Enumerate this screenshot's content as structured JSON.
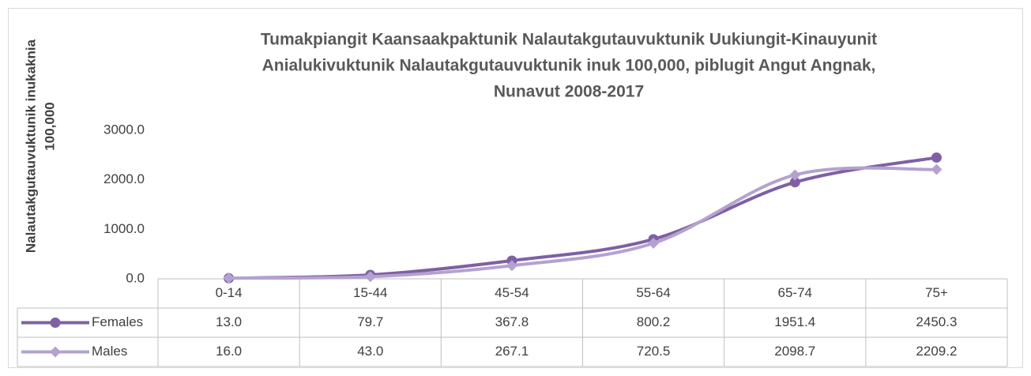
{
  "chart_data": {
    "type": "line",
    "title": [
      "Tumakpiangit Kaansaakpaktunik Nalautakgutauvuktunik Uukiungit-Kinauyunit",
      "Anialukivuktunik Nalautakgutauvuktunik inuk 100,000, piblugit Angut Angnak,",
      "Nunavut 2008-2017"
    ],
    "y_label": [
      "Nalautakgutauvuktunik inukaknia",
      "100,000"
    ],
    "categories": [
      "0-14",
      "15-44",
      "45-54",
      "55-64",
      "65-74",
      "75+"
    ],
    "series": [
      {
        "name": "Females",
        "color": "#7f60a3",
        "marker": "circle",
        "values": [
          13.0,
          79.7,
          367.8,
          800.2,
          1951.4,
          2450.3
        ],
        "value_labels": [
          "13.0",
          "79.7",
          "367.8",
          "800.2",
          "1951.4",
          "2450.3"
        ]
      },
      {
        "name": "Males",
        "color": "#b3a2d0",
        "marker": "diamond",
        "values": [
          16.0,
          43.0,
          267.1,
          720.5,
          2098.7,
          2209.2
        ],
        "value_labels": [
          "16.0",
          "43.0",
          "267.1",
          "720.5",
          "2098.7",
          "2209.2"
        ]
      }
    ],
    "ylim": [
      0,
      3000
    ],
    "yticks": [
      {
        "value": 0,
        "label": "0.0"
      },
      {
        "value": 1000,
        "label": "1000.0"
      },
      {
        "value": 2000,
        "label": "2000.0"
      },
      {
        "value": 3000,
        "label": "3000.0"
      }
    ],
    "grid": false,
    "data_table": true
  }
}
